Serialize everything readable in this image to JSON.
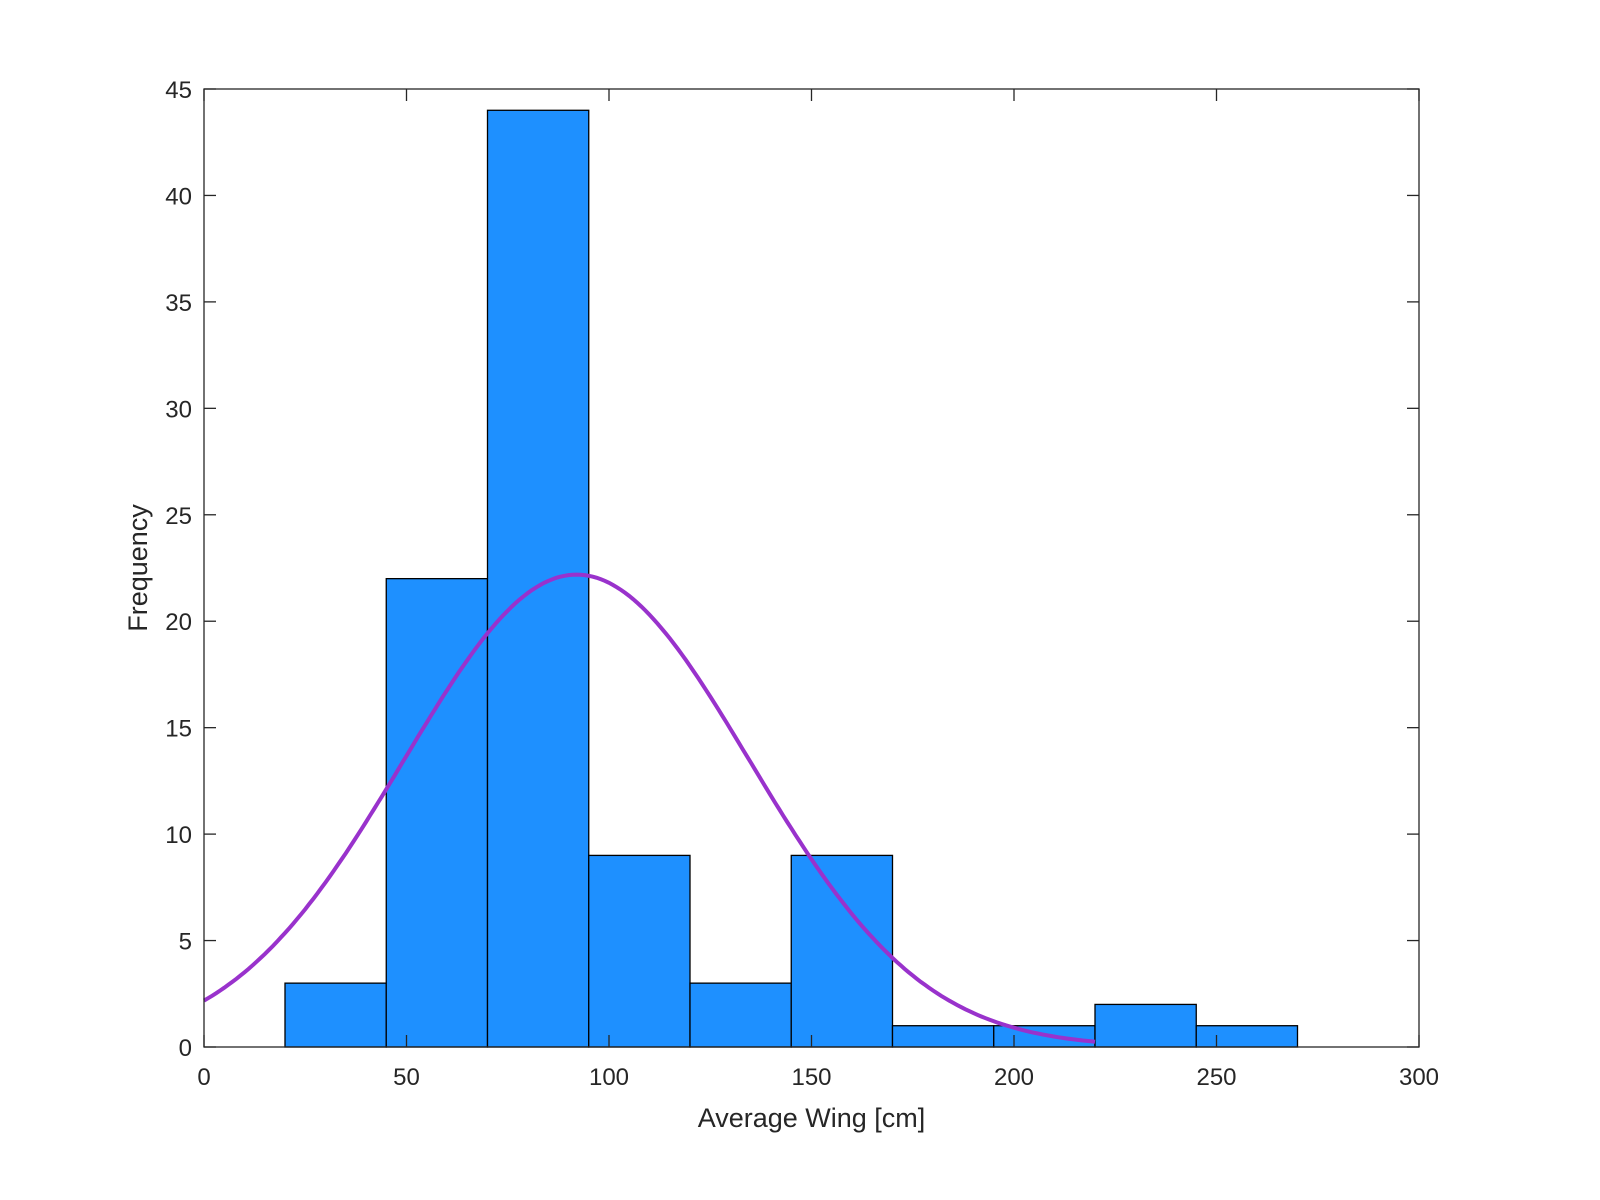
{
  "chart_data": {
    "type": "bar",
    "subtype": "histogram",
    "title": "",
    "xlabel": "Average Wing [cm]",
    "ylabel": "Frequency",
    "xlim": [
      0,
      300
    ],
    "ylim": [
      0,
      45
    ],
    "xticks": [
      0,
      50,
      100,
      150,
      200,
      250,
      300
    ],
    "yticks": [
      0,
      5,
      10,
      15,
      20,
      25,
      30,
      35,
      40,
      45
    ],
    "bin_edges": [
      20,
      45,
      70,
      95,
      120,
      145,
      170,
      195,
      220,
      245,
      270
    ],
    "values": [
      3,
      22,
      44,
      9,
      3,
      9,
      1,
      1,
      2,
      1
    ],
    "bar_color": "#1E90FF",
    "fit": {
      "type": "normal",
      "mean": 92,
      "sigma": 42.7,
      "scale_count": 95,
      "bin_width": 25,
      "x_range": [
        0,
        220
      ],
      "color": "#9932CC"
    },
    "grid": false
  }
}
